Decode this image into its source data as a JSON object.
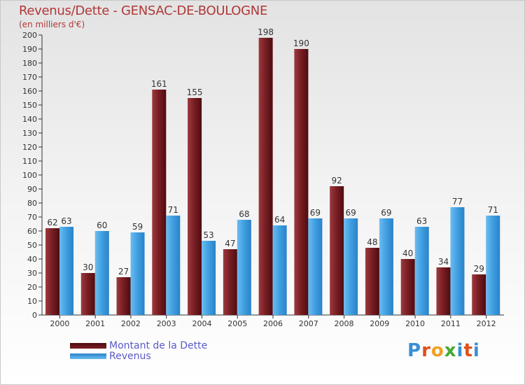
{
  "title": "Revenus/Dette - GENSAC-DE-BOULOGNE",
  "subtitle": "(en milliers d'€)",
  "colors": {
    "debt": "#7a1f24",
    "revenue": "#3f9ee0",
    "title": "#b03838",
    "legend_text": "#5a5ac8"
  },
  "legend": {
    "debt_label": "Montant de la Dette",
    "revenue_label": "Revenus"
  },
  "logo": {
    "letters": [
      "P",
      "r",
      "o",
      "x",
      "i",
      "t",
      "i"
    ],
    "colors": [
      "#3a8fd6",
      "#e0501c",
      "#f0a020",
      "#44aa33",
      "#3a8fd6",
      "#e0501c",
      "#3a8fd6"
    ]
  },
  "chart_data": {
    "type": "bar",
    "title": "Revenus/Dette - GENSAC-DE-BOULOGNE",
    "subtitle": "(en milliers d'€)",
    "categories": [
      "2000",
      "2001",
      "2002",
      "2003",
      "2004",
      "2005",
      "2006",
      "2007",
      "2008",
      "2009",
      "2010",
      "2011",
      "2012"
    ],
    "series": [
      {
        "name": "Montant de la Dette",
        "values": [
          62,
          30,
          27,
          161,
          155,
          47,
          198,
          190,
          92,
          48,
          40,
          34,
          29
        ]
      },
      {
        "name": "Revenus",
        "values": [
          63,
          60,
          59,
          71,
          53,
          68,
          64,
          69,
          69,
          69,
          63,
          77,
          71
        ]
      }
    ],
    "ylim": [
      0,
      200
    ],
    "yticks": [
      0,
      10,
      20,
      30,
      40,
      50,
      60,
      70,
      80,
      90,
      100,
      110,
      120,
      130,
      140,
      150,
      160,
      170,
      180,
      190,
      200
    ],
    "grid": false,
    "legend_position": "bottom-left"
  }
}
